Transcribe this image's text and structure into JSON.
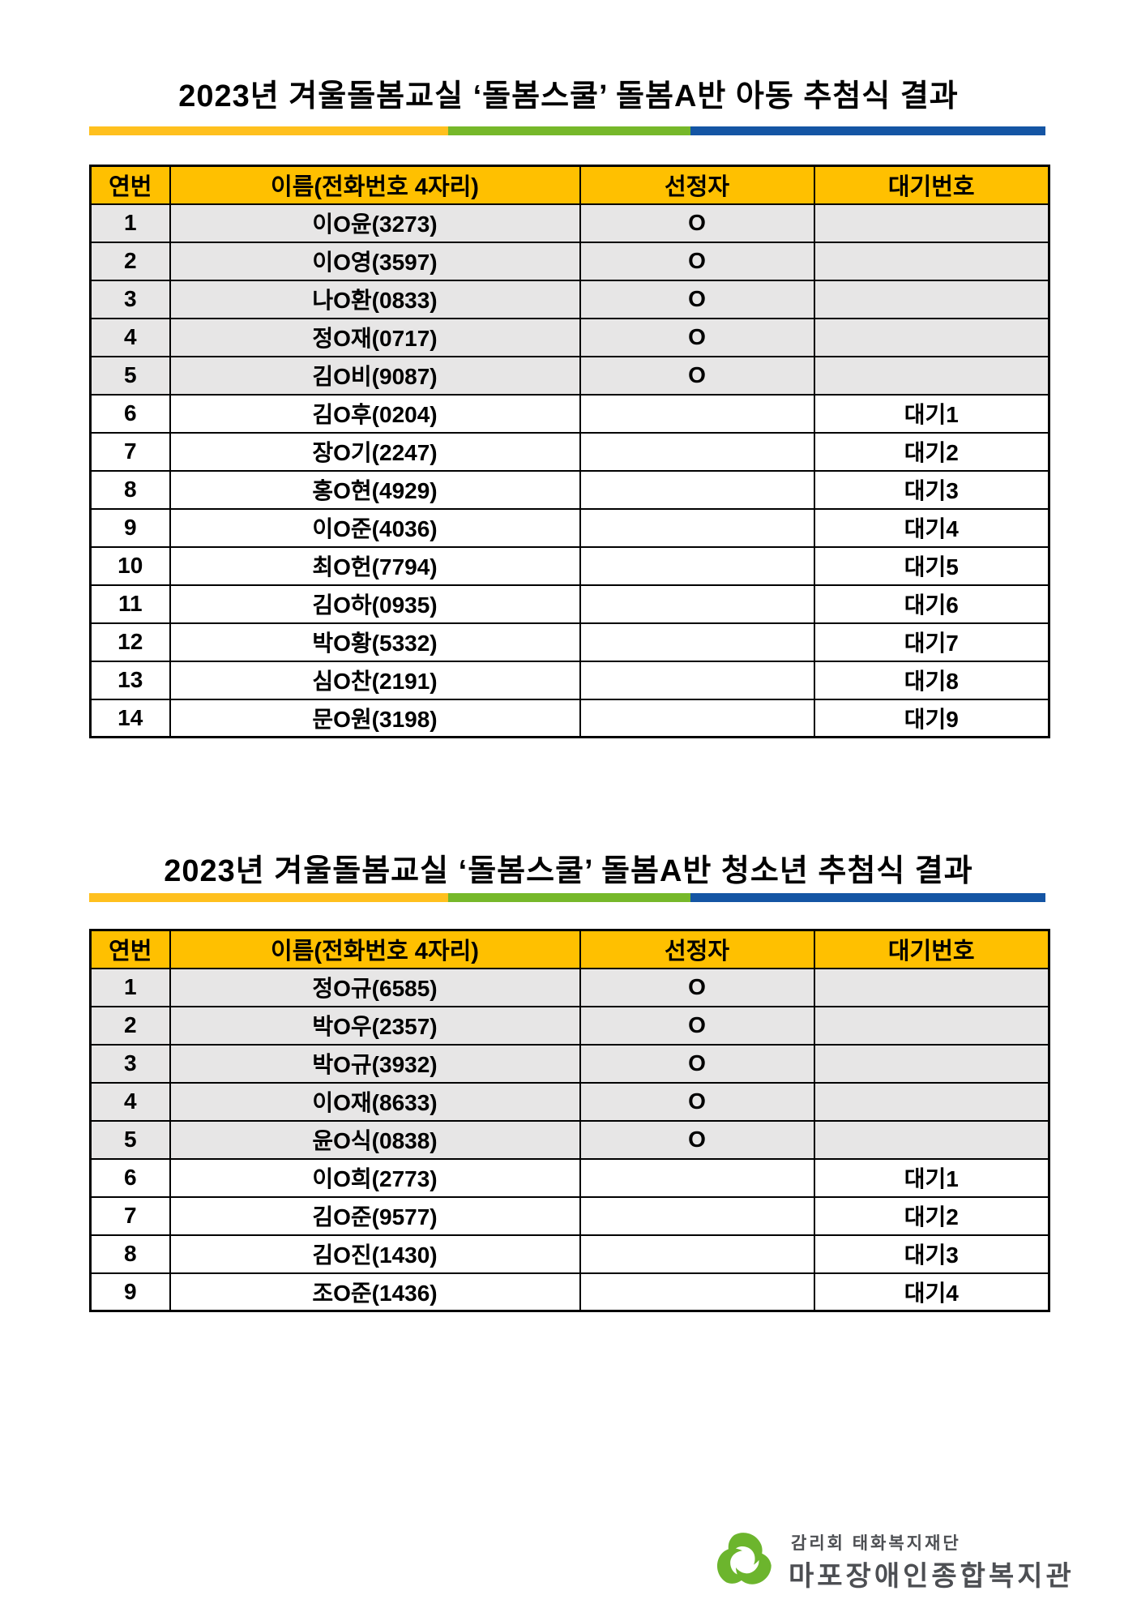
{
  "sections": [
    {
      "title": "2023년  겨울돌봄교실  ‘돌봄스쿨’  돌봄A반  아동  추첨식  결과",
      "columns": [
        "연번",
        "이름(전화번호  4자리)",
        "선정자",
        "대기번호"
      ],
      "rows": [
        [
          "1",
          "이O윤(3273)",
          "O",
          ""
        ],
        [
          "2",
          "이O영(3597)",
          "O",
          ""
        ],
        [
          "3",
          "나O환(0833)",
          "O",
          ""
        ],
        [
          "4",
          "정O재(0717)",
          "O",
          ""
        ],
        [
          "5",
          "김O비(9087)",
          "O",
          ""
        ],
        [
          "6",
          "김O후(0204)",
          "",
          "대기1"
        ],
        [
          "7",
          "장O기(2247)",
          "",
          "대기2"
        ],
        [
          "8",
          "홍O현(4929)",
          "",
          "대기3"
        ],
        [
          "9",
          "이O준(4036)",
          "",
          "대기4"
        ],
        [
          "10",
          "최O헌(7794)",
          "",
          "대기5"
        ],
        [
          "11",
          "김O하(0935)",
          "",
          "대기6"
        ],
        [
          "12",
          "박O황(5332)",
          "",
          "대기7"
        ],
        [
          "13",
          "심O찬(2191)",
          "",
          "대기8"
        ],
        [
          "14",
          "문O원(3198)",
          "",
          "대기9"
        ]
      ]
    },
    {
      "title": "2023년  겨울돌봄교실  ‘돌봄스쿨’  돌봄A반  청소년  추첨식  결과",
      "columns": [
        "연번",
        "이름(전화번호  4자리)",
        "선정자",
        "대기번호"
      ],
      "rows": [
        [
          "1",
          "정O규(6585)",
          "O",
          ""
        ],
        [
          "2",
          "박O우(2357)",
          "O",
          ""
        ],
        [
          "3",
          "박O규(3932)",
          "O",
          ""
        ],
        [
          "4",
          "이O재(8633)",
          "O",
          ""
        ],
        [
          "5",
          "윤O식(0838)",
          "O",
          ""
        ],
        [
          "6",
          "이O희(2773)",
          "",
          "대기1"
        ],
        [
          "7",
          "김O준(9577)",
          "",
          "대기2"
        ],
        [
          "8",
          "김O진(1430)",
          "",
          "대기3"
        ],
        [
          "9",
          "조O준(1436)",
          "",
          "대기4"
        ]
      ]
    }
  ],
  "footer": {
    "org_parent": "감리회 태화복지재단",
    "org_name": "마포장애인종합복지관"
  },
  "colors": {
    "header_bg": "#FFC000",
    "row_selected_bg": "#E7E6E6",
    "bar_yellow": "#FFC01E",
    "bar_green": "#76B82A",
    "bar_blue": "#1455A4",
    "logo_yellow": "#F2A90C",
    "logo_green": "#6CB52D",
    "logo_blue": "#1C5FA8",
    "footer_text": "#4D4F53"
  }
}
